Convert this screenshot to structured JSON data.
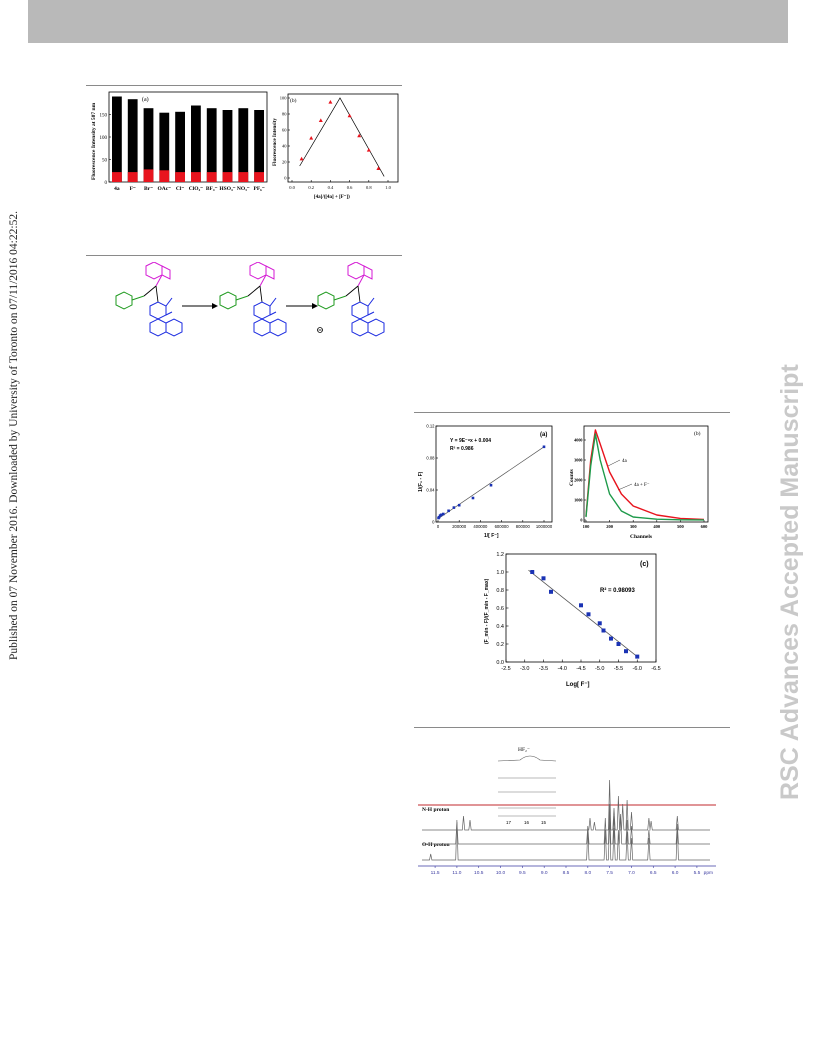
{
  "side_note": "Published on 07 November 2016. Downloaded by University of Toronto on 07/11/2016 04:22:52.",
  "watermark": "RSC Advances Accepted Manuscript",
  "figure_bar": {
    "panel": "(a)",
    "ylabel": "Fluorescence Intensity at 507 nm",
    "yticks": [
      "0",
      "50",
      "100",
      "150"
    ],
    "categories": [
      "4a",
      "F⁻",
      "Br⁻",
      "OAc⁻",
      "Cl⁻",
      "ClO₄⁻",
      "BF₄⁻",
      "HSO₄⁻",
      "NO₃⁻",
      "PF₆⁻"
    ],
    "colors": {
      "black_series": "#000000",
      "red_series": "#e8141e"
    }
  },
  "figure_job": {
    "panel": "(b)",
    "ylabel": "Fluorescence Intensity",
    "xlabel": "[4a]/([4a] + [F⁻])",
    "xticks": [
      "0.0",
      "0.2",
      "0.4",
      "0.6",
      "0.8",
      "1.0"
    ],
    "yticks": [
      "0",
      "20",
      "40",
      "60",
      "80",
      "100"
    ],
    "color": "#e8141e"
  },
  "figure_bh": {
    "panel": "(a)",
    "equation": "Y = 9E⁻⁸x + 0.004",
    "r2": "R² = 0.986",
    "ylabel": "1/(F₀ - F)",
    "xlabel": "1/[ F⁻]",
    "xticks": [
      "0",
      "200000",
      "400000",
      "600000",
      "800000",
      "1000000"
    ],
    "yticks": [
      "0",
      "0.04",
      "0.08",
      "0.12"
    ],
    "color": "#1a32b4"
  },
  "figure_decay": {
    "panel": "(b)",
    "ylabel": "Counts",
    "xlabel": "Channels",
    "label_a": "4a",
    "label_b": "4a + F⁻",
    "xticks": [
      "100",
      "200",
      "300",
      "400",
      "500",
      "600"
    ],
    "yticks": [
      "0",
      "1000",
      "2000",
      "3000",
      "4000"
    ],
    "colors": {
      "red": "#e8141e",
      "green": "#1e9a4a",
      "black": "#222222"
    }
  },
  "figure_log": {
    "panel": "(c)",
    "r2": "R² = 0.98093",
    "ylabel": "(F_min - F)/(F_min - F_max)",
    "xlabel": "Log[ F⁻]",
    "xticks": [
      "-2.5",
      "-3.0",
      "-3.5",
      "-4.0",
      "-4.5",
      "-5.0",
      "-5.5",
      "-6.0",
      "-6.5"
    ],
    "yticks": [
      "0.0",
      "0.2",
      "0.4",
      "0.6",
      "0.8",
      "1.0",
      "1.2"
    ],
    "color": "#1a32b4"
  },
  "figure_nmr": {
    "label_nh": "N-H proton",
    "label_oh": "O-H proton",
    "label_hf2": "HF₂⁻",
    "inset_ticks": [
      "17",
      "16",
      "15"
    ],
    "unit": "ppm",
    "axis_ticks": [
      "11.5",
      "11.0",
      "10.5",
      "10.0",
      "9.5",
      "9.0",
      "8.5",
      "8.0",
      "7.5",
      "7.0",
      "6.5",
      "6.0",
      "5.5"
    ],
    "color_line": "#c0282d",
    "color_axis": "#3a3aa0"
  },
  "chart_data": [
    {
      "type": "bar",
      "panel": "(a)",
      "categories": [
        "4a",
        "F⁻",
        "Br⁻",
        "OAc⁻",
        "Cl⁻",
        "ClO₄⁻",
        "BF₄⁻",
        "HSO₄⁻",
        "NO₃⁻",
        "PF₆⁻"
      ],
      "series": [
        {
          "values": [
            190,
            184,
            164,
            154,
            156,
            170,
            164,
            160,
            164,
            160
          ]
        },
        {
          "values": [
            22,
            22,
            28,
            26,
            22,
            22,
            22,
            22,
            22,
            22
          ]
        }
      ],
      "ylabel": "Fluorescence Intensity at 507 nm",
      "ylim": [
        0,
        200
      ]
    },
    {
      "type": "scatter",
      "panel": "(b)",
      "x": [
        0.1,
        0.2,
        0.3,
        0.4,
        0.6,
        0.7,
        0.8,
        0.9
      ],
      "y": [
        24,
        50,
        72,
        95,
        78,
        53,
        35,
        12
      ],
      "xlabel": "[4a]/([4a] + [F⁻])",
      "ylabel": "Fluorescence Intensity",
      "xlim": [
        0,
        1.0
      ],
      "ylim": [
        0,
        100
      ]
    },
    {
      "type": "scatter",
      "panel": "(a)",
      "x": [
        5000,
        10000,
        20000,
        30000,
        50000,
        100000,
        150000,
        200000,
        330000,
        500000,
        1000000
      ],
      "y": [
        0.005,
        0.006,
        0.008,
        0.009,
        0.01,
        0.014,
        0.018,
        0.021,
        0.03,
        0.046,
        0.094
      ],
      "xlabel": "1/[ F⁻]",
      "ylabel": "1/(F₀ - F)",
      "xlim": [
        0,
        1000000
      ],
      "ylim": [
        0,
        0.12
      ]
    },
    {
      "type": "line",
      "panel": "(b)",
      "x": [
        100,
        120,
        140,
        160,
        200,
        250,
        300,
        400,
        500,
        600
      ],
      "series": [
        {
          "name": "4a",
          "values": [
            200,
            3000,
            4500,
            3800,
            2400,
            1300,
            700,
            250,
            80,
            30
          ]
        },
        {
          "name": "4a + F⁻",
          "values": [
            150,
            2700,
            4300,
            3000,
            1300,
            450,
            150,
            40,
            10,
            5
          ]
        }
      ],
      "xlabel": "Channels",
      "ylabel": "Counts",
      "xlim": [
        100,
        600
      ],
      "ylim": [
        0,
        4500
      ]
    },
    {
      "type": "scatter",
      "panel": "(c)",
      "x": [
        -3.2,
        -3.5,
        -3.7,
        -4.5,
        -4.7,
        -5.0,
        -5.1,
        -5.3,
        -5.5,
        -5.7,
        -6.0
      ],
      "y": [
        1.0,
        0.93,
        0.78,
        0.63,
        0.53,
        0.43,
        0.35,
        0.26,
        0.2,
        0.12,
        0.06
      ],
      "xlabel": "Log[ F⁻]",
      "ylabel": "(F_min - F)/(F_min - F_max)",
      "xlim": [
        -2.5,
        -6.5
      ],
      "ylim": [
        0,
        1.2
      ]
    }
  ]
}
